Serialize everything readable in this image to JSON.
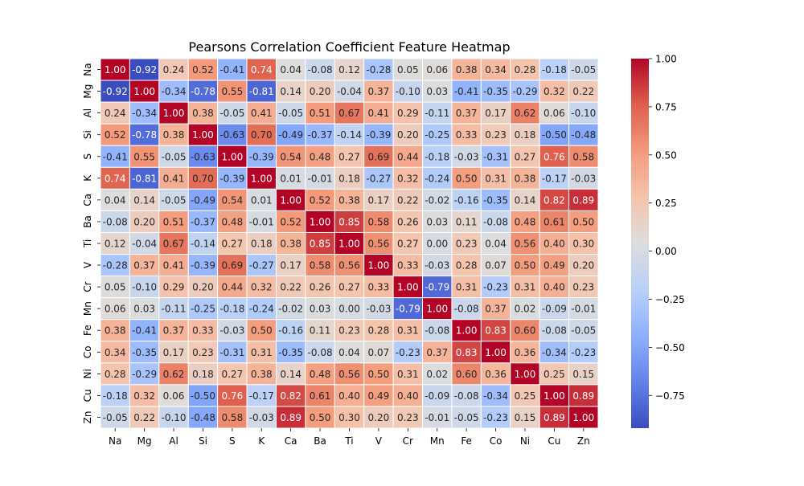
{
  "chart_data": {
    "type": "heatmap",
    "title": "Pearsons Correlation Coefficient Feature Heatmap",
    "xlabel": "",
    "ylabel": "",
    "x_categories": [
      "Na",
      "Mg",
      "Al",
      "Si",
      "S",
      "K",
      "Ca",
      "Ba",
      "Ti",
      "V",
      "Cr",
      "Mn",
      "Fe",
      "Co",
      "Ni",
      "Cu",
      "Zn"
    ],
    "y_categories": [
      "Na",
      "Mg",
      "Al",
      "Si",
      "S",
      "K",
      "Ca",
      "Ba",
      "Ti",
      "V",
      "Cr",
      "Mn",
      "Fe",
      "Co",
      "Ni",
      "Cu",
      "Zn"
    ],
    "values": [
      [
        1.0,
        -0.92,
        0.24,
        0.52,
        -0.41,
        0.74,
        0.04,
        -0.08,
        0.12,
        -0.28,
        0.05,
        0.06,
        0.38,
        0.34,
        0.28,
        -0.18,
        -0.05
      ],
      [
        -0.92,
        1.0,
        -0.34,
        -0.78,
        0.55,
        -0.81,
        0.14,
        0.2,
        -0.04,
        0.37,
        -0.1,
        0.03,
        -0.41,
        -0.35,
        -0.29,
        0.32,
        0.22
      ],
      [
        0.24,
        -0.34,
        1.0,
        0.38,
        -0.05,
        0.41,
        -0.05,
        0.51,
        0.67,
        0.41,
        0.29,
        -0.11,
        0.37,
        0.17,
        0.62,
        0.06,
        -0.1
      ],
      [
        0.52,
        -0.78,
        0.38,
        1.0,
        -0.63,
        0.7,
        -0.49,
        -0.37,
        -0.14,
        -0.39,
        0.2,
        -0.25,
        0.33,
        0.23,
        0.18,
        -0.5,
        -0.48
      ],
      [
        -0.41,
        0.55,
        -0.05,
        -0.63,
        1.0,
        -0.39,
        0.54,
        0.48,
        0.27,
        0.69,
        0.44,
        -0.18,
        -0.03,
        -0.31,
        0.27,
        0.76,
        0.58
      ],
      [
        0.74,
        -0.81,
        0.41,
        0.7,
        -0.39,
        1.0,
        0.01,
        -0.01,
        0.18,
        -0.27,
        0.32,
        -0.24,
        0.5,
        0.31,
        0.38,
        -0.17,
        -0.03
      ],
      [
        0.04,
        0.14,
        -0.05,
        -0.49,
        0.54,
        0.01,
        1.0,
        0.52,
        0.38,
        0.17,
        0.22,
        -0.02,
        -0.16,
        -0.35,
        0.14,
        0.82,
        0.89
      ],
      [
        -0.08,
        0.2,
        0.51,
        -0.37,
        0.48,
        -0.01,
        0.52,
        1.0,
        0.85,
        0.58,
        0.26,
        0.03,
        0.11,
        -0.08,
        0.48,
        0.61,
        0.5
      ],
      [
        0.12,
        -0.04,
        0.67,
        -0.14,
        0.27,
        0.18,
        0.38,
        0.85,
        1.0,
        0.56,
        0.27,
        0.0,
        0.23,
        0.04,
        0.56,
        0.4,
        0.3
      ],
      [
        -0.28,
        0.37,
        0.41,
        -0.39,
        0.69,
        -0.27,
        0.17,
        0.58,
        0.56,
        1.0,
        0.33,
        -0.03,
        0.28,
        0.07,
        0.5,
        0.49,
        0.2
      ],
      [
        0.05,
        -0.1,
        0.29,
        0.2,
        0.44,
        0.32,
        0.22,
        0.26,
        0.27,
        0.33,
        1.0,
        -0.79,
        0.31,
        -0.23,
        0.31,
        0.4,
        0.23
      ],
      [
        0.06,
        0.03,
        -0.11,
        -0.25,
        -0.18,
        -0.24,
        -0.02,
        0.03,
        0.0,
        -0.03,
        -0.79,
        1.0,
        -0.08,
        0.37,
        0.02,
        -0.09,
        -0.01
      ],
      [
        0.38,
        -0.41,
        0.37,
        0.33,
        -0.03,
        0.5,
        -0.16,
        0.11,
        0.23,
        0.28,
        0.31,
        -0.08,
        1.0,
        0.83,
        0.6,
        -0.08,
        -0.05
      ],
      [
        0.34,
        -0.35,
        0.17,
        0.23,
        -0.31,
        0.31,
        -0.35,
        -0.08,
        0.04,
        0.07,
        -0.23,
        0.37,
        0.83,
        1.0,
        0.36,
        -0.34,
        -0.23
      ],
      [
        0.28,
        -0.29,
        0.62,
        0.18,
        0.27,
        0.38,
        0.14,
        0.48,
        0.56,
        0.5,
        0.31,
        0.02,
        0.6,
        0.36,
        1.0,
        0.25,
        0.15
      ],
      [
        -0.18,
        0.32,
        0.06,
        -0.5,
        0.76,
        -0.17,
        0.82,
        0.61,
        0.4,
        0.49,
        0.4,
        -0.09,
        -0.08,
        -0.34,
        0.25,
        1.0,
        0.89
      ],
      [
        -0.05,
        0.22,
        -0.1,
        -0.48,
        0.58,
        -0.03,
        0.89,
        0.5,
        0.3,
        0.2,
        0.23,
        -0.01,
        -0.05,
        -0.23,
        0.15,
        0.89,
        1.0
      ]
    ],
    "colormap": "coolwarm",
    "vmin": -0.92,
    "vmax": 1.0,
    "colorbar_ticks": [
      1.0,
      0.75,
      0.5,
      0.25,
      0.0,
      -0.25,
      -0.5,
      -0.75
    ],
    "cell_border_color": "#ffffff",
    "annotation_format": "2 decimals",
    "grid": false
  }
}
